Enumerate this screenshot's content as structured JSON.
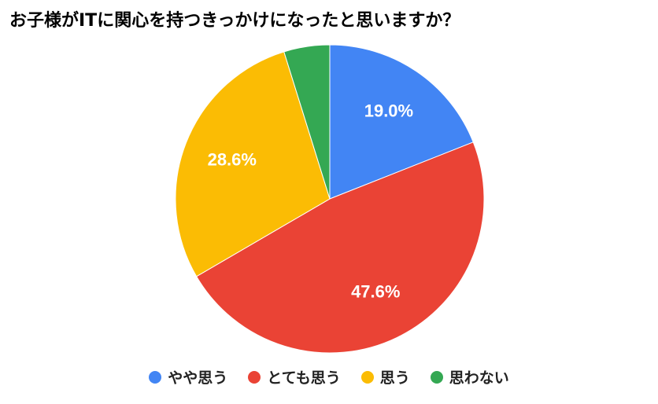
{
  "chart_data": {
    "type": "pie",
    "title": "お子様がITに関心を持つきっかけになったと思いますか？",
    "categories": [
      "やや思う",
      "とても思う",
      "思う",
      "思わない"
    ],
    "values": [
      19.0,
      47.6,
      28.6,
      4.8
    ],
    "value_labels": [
      "19.0%",
      "47.6%",
      "28.6%",
      null
    ],
    "colors": [
      "#4285f4",
      "#ea4335",
      "#fbbc04",
      "#34a853"
    ],
    "legend": "bottom"
  }
}
